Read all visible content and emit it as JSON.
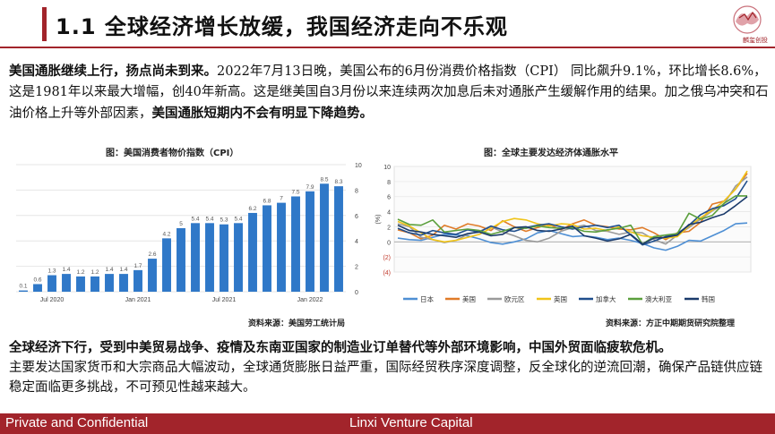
{
  "header": {
    "title": "1.1  全球经济增长放缓，我国经济走向不乐观",
    "logo_text": "麟玺创投"
  },
  "intro": {
    "bold_lead": "美国通胀继续上行，扬点尚未到来。",
    "body": "2022年7月13日晚，美国公布的6月份消费价格指数（CPI） 同比飙升9.1%，环比增长8.6%，这是1981年以来最大增幅，创40年新高。这是继美国自3月份以来连续两次加息后未对通胀产生缓解作用的结果。加之俄乌冲突和石油价格上升等外部因素，",
    "bold_tail": "美国通胀短期内不会有明显下降趋势。"
  },
  "chart_cpi": {
    "title": "图：美国消费者物价指数（CPI）",
    "source": "资料来源：美国劳工统计局",
    "colors": {
      "bar": "#2f78c8",
      "grid": "#e6e6e6"
    }
  },
  "chart_intl": {
    "title": "图：全球主要发达经济体通胀水平",
    "source": "资料来源：方正中期期货研究院整理"
  },
  "chart_data": [
    {
      "type": "bar",
      "title": "图：美国消费者物价指数（CPI）",
      "values": [
        0.1,
        0.6,
        1.3,
        1.4,
        1.2,
        1.2,
        1.4,
        1.4,
        1.7,
        2.6,
        4.2,
        5,
        5.4,
        5.4,
        5.3,
        5.4,
        6.2,
        6.8,
        7,
        7.5,
        7.9,
        8.5,
        8.3
      ],
      "data_labels": [
        "0.1",
        "0.6",
        "1.3",
        "1.4",
        "1.2",
        "1.2",
        "1.4",
        "1.4",
        "1.7",
        "2.6",
        "4.2",
        "5",
        "5.4",
        "5.4",
        "5.3",
        "5.4",
        "6.2",
        "6.8",
        "7",
        "7.5",
        "7.9",
        "8.5",
        "8.3"
      ],
      "x_tick_labels": [
        "Jul 2020",
        "Jan 2021",
        "Jul 2021",
        "Jan 2022"
      ],
      "x_tick_index": [
        2,
        8,
        14,
        20
      ],
      "y_ticks": [
        0,
        2,
        4,
        6,
        8,
        10
      ],
      "ylim": [
        0,
        10
      ],
      "grid": true
    },
    {
      "type": "line",
      "title": "图：全球主要发达经济体通胀水平",
      "ylabel": "(%)",
      "y_tick_labels": [
        "(4)",
        "(2)",
        "0",
        "2",
        "4",
        "6",
        "8",
        "10"
      ],
      "y_ticks": [
        -4,
        -2,
        0,
        2,
        4,
        6,
        8,
        10
      ],
      "ylim": [
        -4,
        10
      ],
      "legend_position": "bottom",
      "series": [
        {
          "name": "日本",
          "color": "#4e8fd4",
          "values": [
            0.5,
            0.3,
            0.2,
            0.6,
            1.0,
            0.9,
            0.8,
            0.4,
            -0.1,
            -0.3,
            0.0,
            0.4,
            1.2,
            1.5,
            1.1,
            0.7,
            0.8,
            0.6,
            0.3,
            0.5,
            0.2,
            -0.2,
            -0.8,
            -1.1,
            -0.6,
            0.2,
            0.1,
            0.8,
            1.5,
            2.4,
            2.5
          ]
        },
        {
          "name": "美国",
          "color": "#e07b28",
          "values": [
            1.6,
            1.2,
            0.4,
            0.9,
            2.2,
            1.7,
            2.4,
            2.1,
            1.5,
            2.8,
            2.0,
            1.4,
            1.9,
            2.3,
            1.6,
            2.4,
            2.9,
            2.2,
            2.0,
            1.7,
            1.6,
            1.9,
            1.2,
            0.3,
            1.2,
            1.4,
            2.6,
            5.0,
            5.4,
            7.0,
            9.1
          ]
        },
        {
          "name": "欧元区",
          "color": "#9a9a9a",
          "values": [
            2.4,
            2.0,
            0.6,
            0.3,
            -0.1,
            0.2,
            1.0,
            1.4,
            2.0,
            1.3,
            0.8,
            0.2,
            0.0,
            0.5,
            1.4,
            1.9,
            2.2,
            1.5,
            1.4,
            1.0,
            1.3,
            1.2,
            0.3,
            -0.3,
            0.9,
            1.9,
            3.0,
            4.1,
            5.0,
            7.4,
            8.6
          ]
        },
        {
          "name": "英国",
          "color": "#f0c419",
          "values": [
            2.7,
            2.1,
            1.2,
            0.3,
            0.0,
            0.2,
            0.6,
            1.0,
            1.8,
            2.7,
            3.1,
            2.9,
            2.4,
            2.1,
            2.4,
            2.3,
            1.7,
            1.8,
            1.5,
            2.0,
            1.3,
            0.8,
            0.6,
            0.5,
            0.7,
            2.1,
            3.2,
            4.2,
            5.4,
            7.0,
            9.4
          ]
        },
        {
          "name": "加拿大",
          "color": "#1f4e8c",
          "values": [
            1.8,
            1.2,
            0.9,
            1.5,
            1.2,
            1.0,
            1.6,
            1.3,
            2.1,
            1.6,
            1.4,
            1.9,
            2.2,
            2.4,
            2.0,
            1.7,
            2.0,
            2.2,
            1.9,
            2.2,
            0.9,
            -0.4,
            0.1,
            0.7,
            1.1,
            2.2,
            3.6,
            4.4,
            4.8,
            5.7,
            8.1
          ]
        },
        {
          "name": "澳大利亚",
          "color": "#5b9f3c",
          "values": [
            3.0,
            2.3,
            2.2,
            2.9,
            1.3,
            1.5,
            1.7,
            1.5,
            1.0,
            1.4,
            1.9,
            1.8,
            2.1,
            1.9,
            1.8,
            1.9,
            1.4,
            1.3,
            1.6,
            1.8,
            2.2,
            -0.3,
            0.7,
            0.9,
            1.1,
            3.8,
            3.0,
            3.5,
            5.1,
            6.1,
            6.1
          ]
        },
        {
          "name": "韩国",
          "color": "#1a3a6b",
          "values": [
            2.2,
            1.5,
            1.3,
            1.0,
            0.8,
            0.6,
            1.1,
            1.3,
            0.8,
            1.0,
            1.9,
            2.0,
            1.5,
            1.4,
            1.7,
            2.1,
            0.8,
            0.5,
            0.1,
            0.4,
            1.0,
            -0.3,
            0.5,
            0.6,
            0.9,
            2.3,
            2.6,
            3.2,
            3.7,
            4.8,
            6.0
          ]
        }
      ]
    }
  ],
  "summary": {
    "bold_lead": "全球经济下行，受到中美贸易战争、疫情及东南亚国家的制造业订单替代等外部环境影响，中国外贸面临疲软危机。",
    "body": "主要发达国家货币和大宗商品大幅波动，全球通货膨胀日益严重，国际经贸秩序深度调整，反全球化的逆流回潮，确保产品链供应链稳定面临更多挑战，不可预见性越来越大。"
  },
  "footer": {
    "left": "Private and Confidential",
    "right": "Linxi Venture Capital"
  }
}
